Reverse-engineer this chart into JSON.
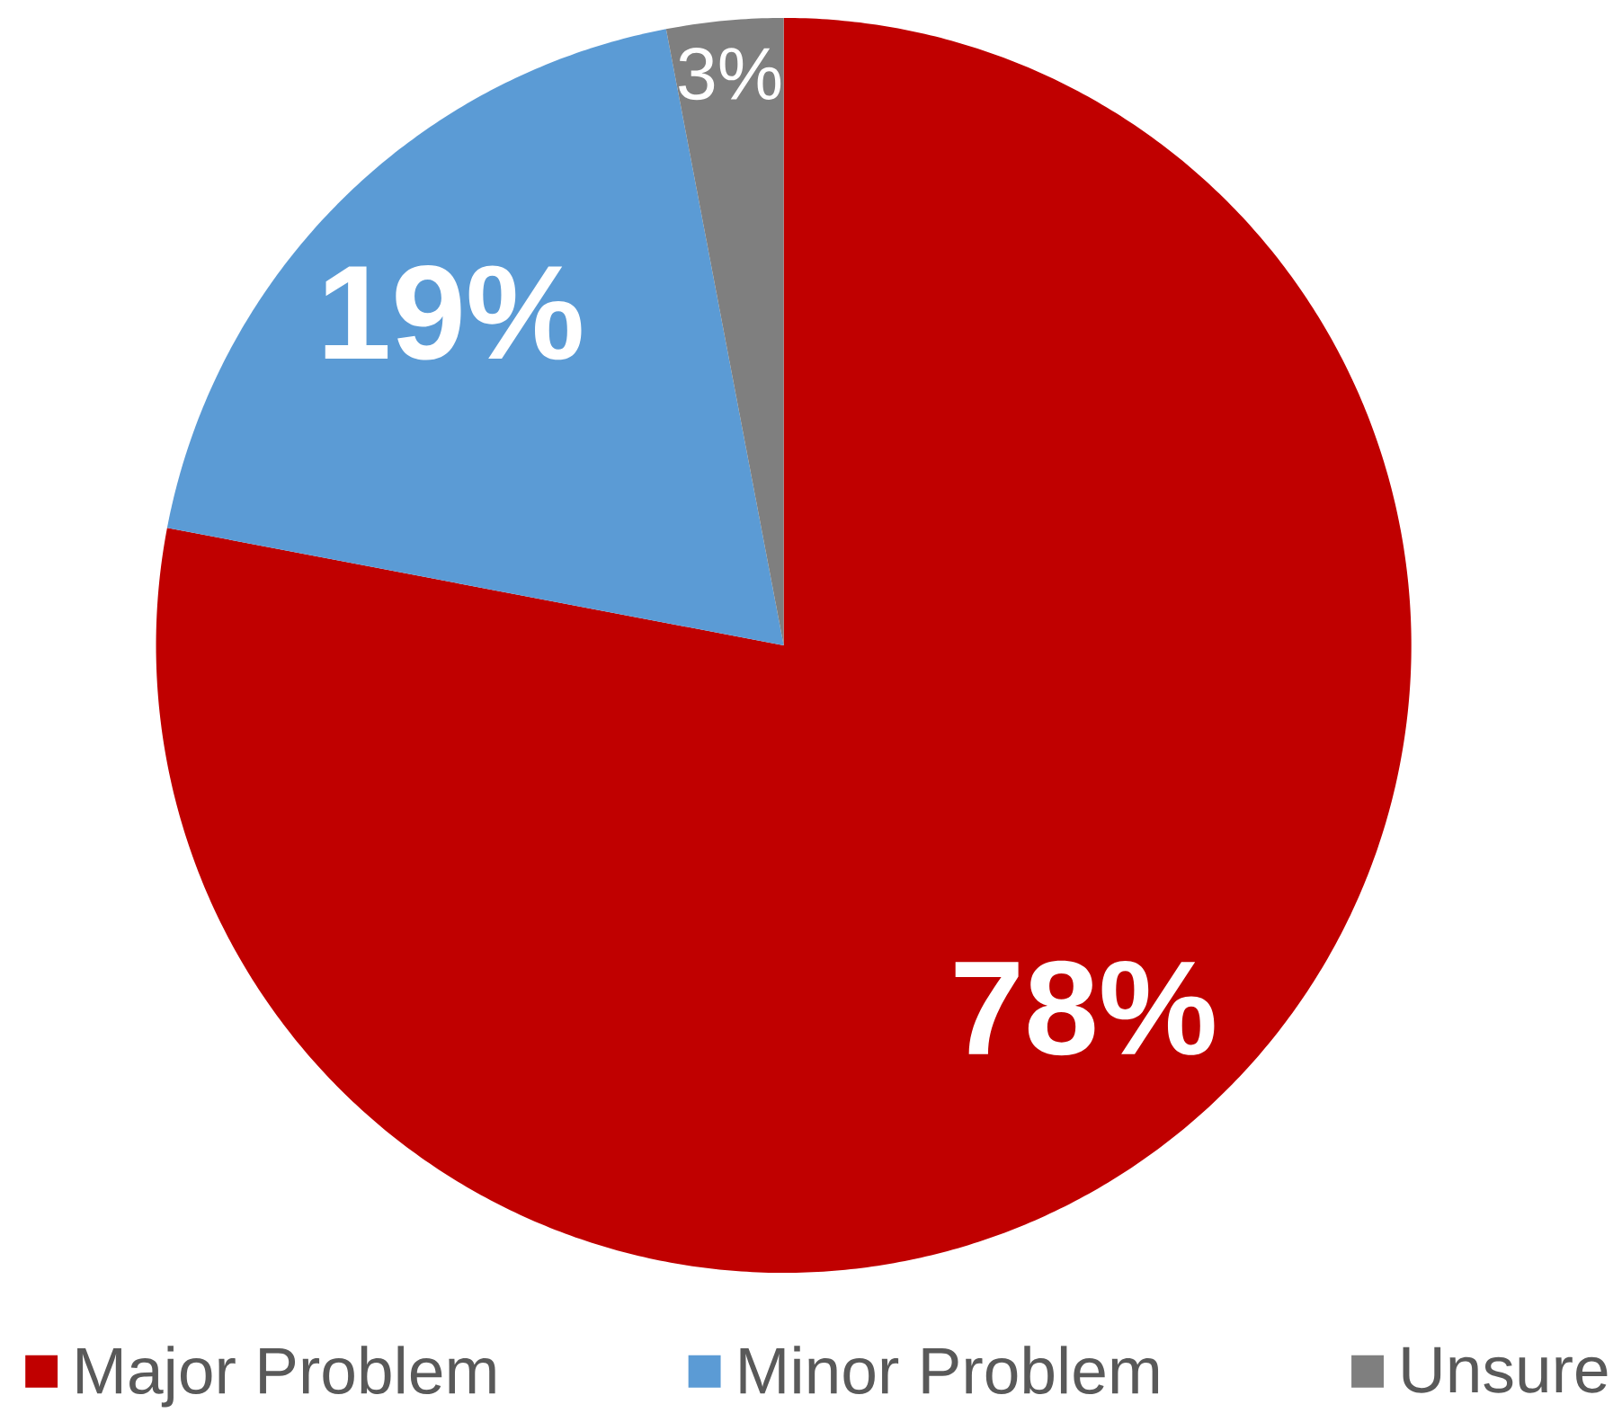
{
  "chart_data": {
    "type": "pie",
    "categories": [
      "Major Problem",
      "Minor Problem",
      "Unsure"
    ],
    "values": [
      78,
      19,
      3
    ],
    "colors": [
      "#c00000",
      "#5b9bd5",
      "#7f7f7f"
    ],
    "value_labels": [
      "78%",
      "19%",
      "3%"
    ],
    "legend": "bottom"
  }
}
